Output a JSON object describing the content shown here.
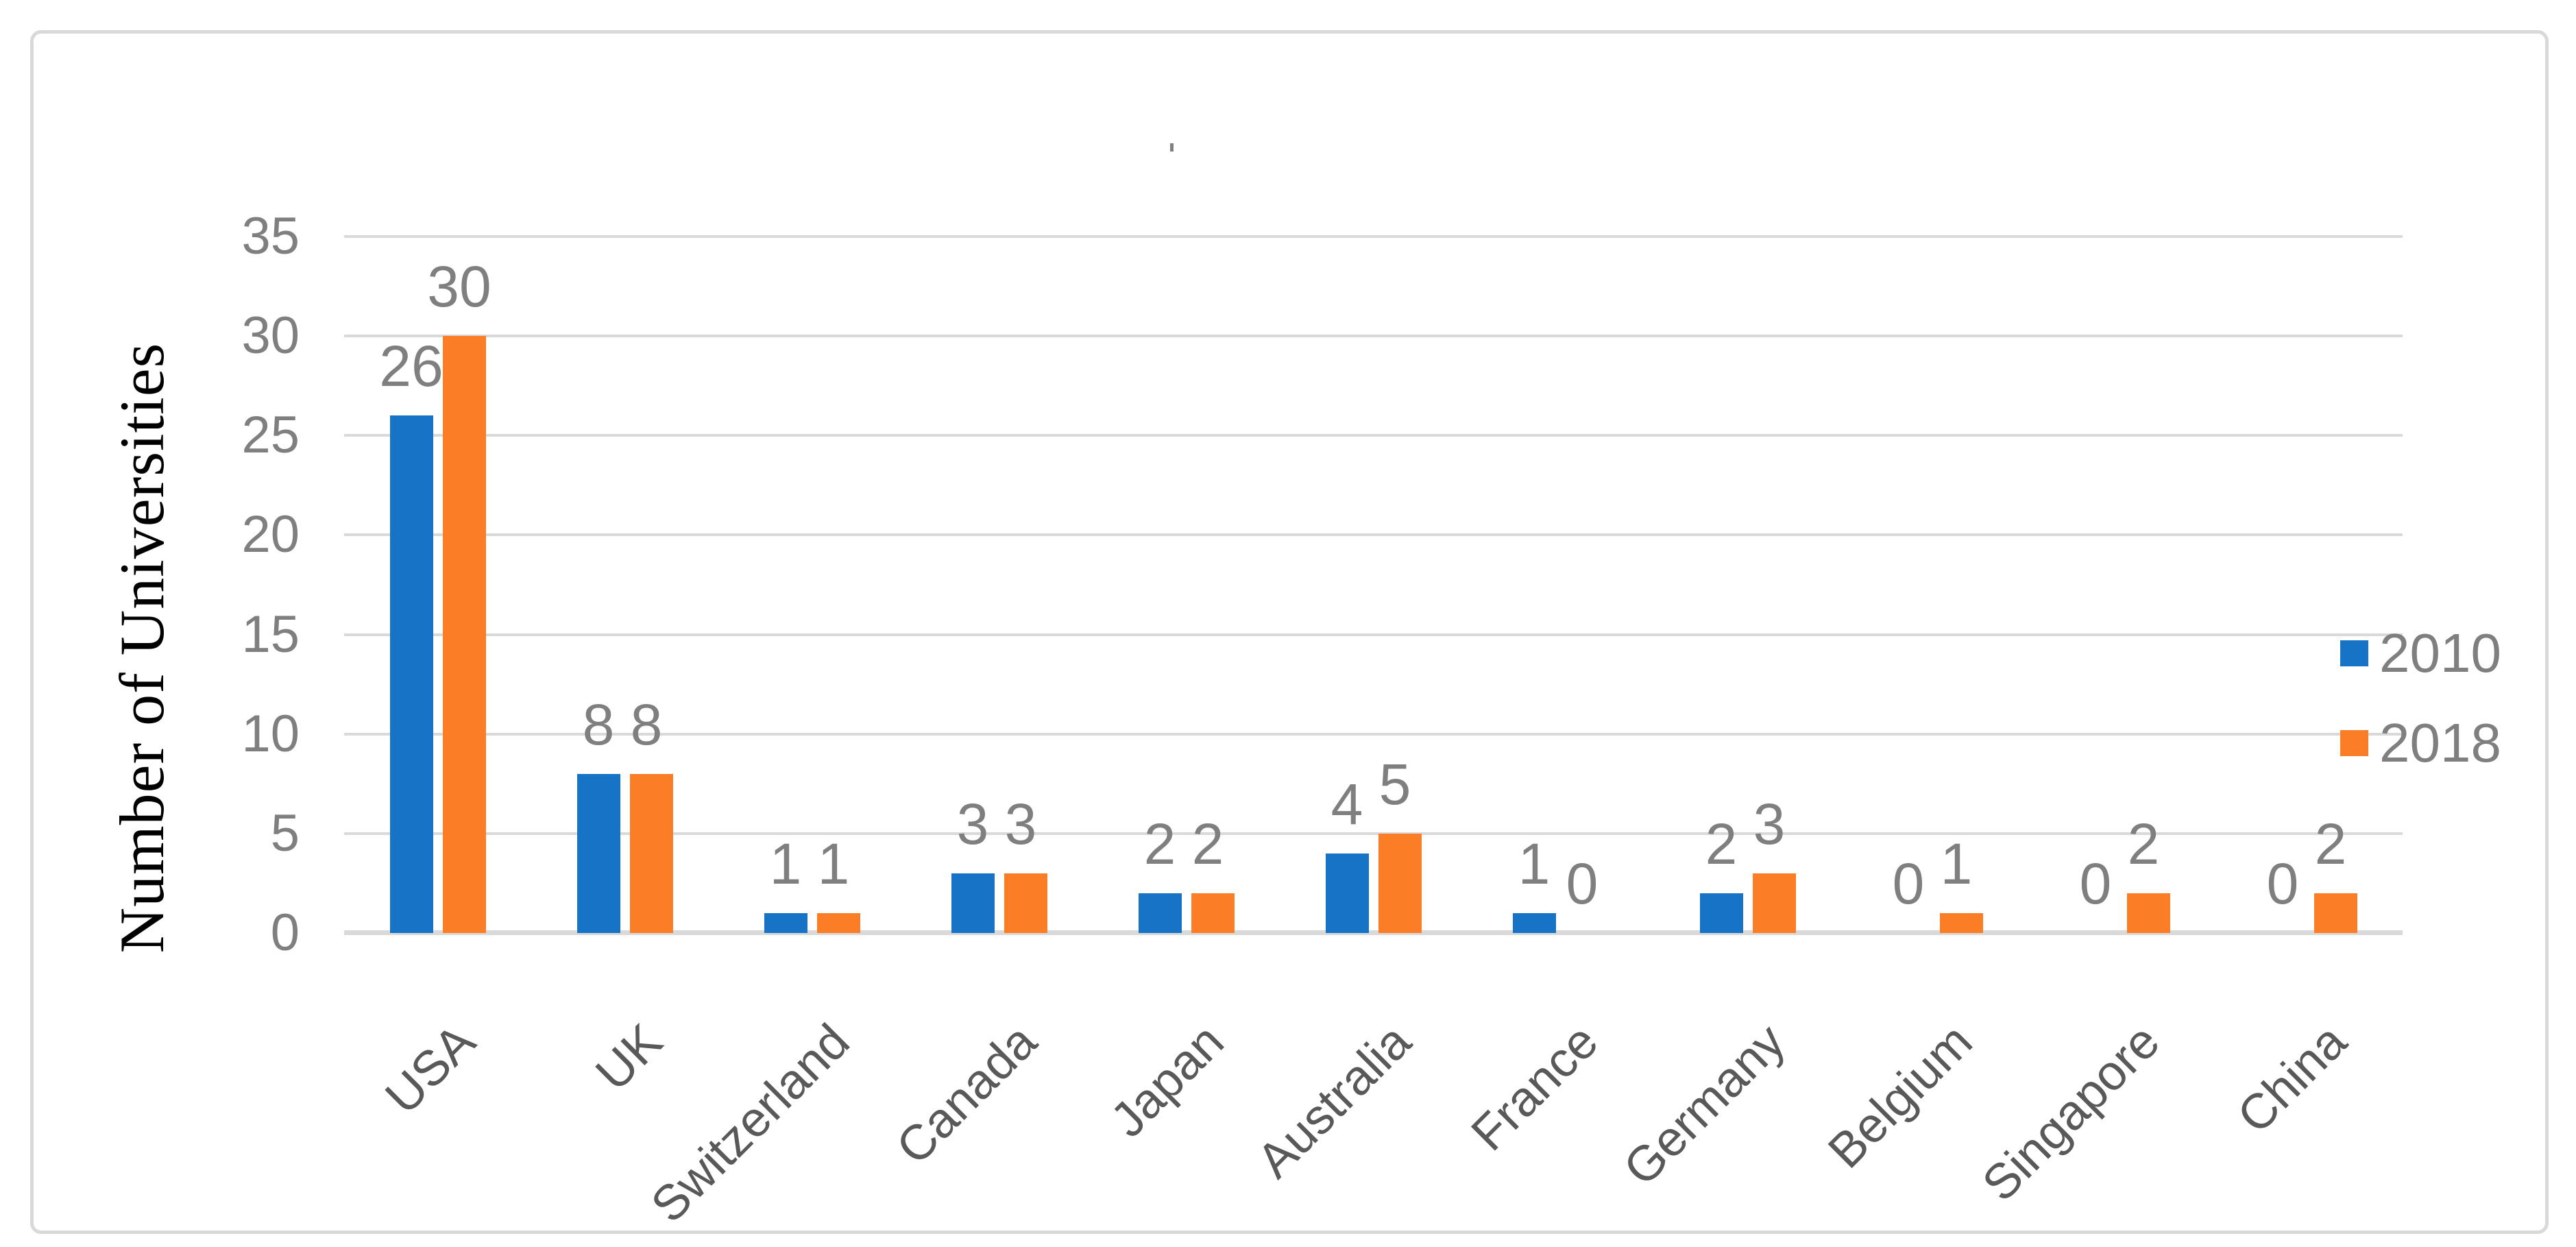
{
  "chart_data": {
    "type": "bar",
    "title": ".",
    "categories": [
      "USA",
      "UK",
      "Switzerland",
      "Canada",
      "Japan",
      "Australia",
      "France",
      "Germany",
      "Belgium",
      "Singapore",
      "China"
    ],
    "series": [
      {
        "name": "2010",
        "color": "#1673C6",
        "values": [
          26,
          8,
          1,
          3,
          2,
          4,
          1,
          2,
          0,
          0,
          0
        ]
      },
      {
        "name": "2018",
        "color": "#FB7D26",
        "values": [
          30,
          8,
          1,
          3,
          2,
          5,
          0,
          3,
          1,
          2,
          2
        ]
      }
    ],
    "ylabel": "Number of Universities",
    "xlabel": "",
    "ylim": [
      0,
      35
    ],
    "yticks": [
      35,
      30,
      25,
      20,
      15,
      10,
      5,
      0
    ],
    "grid": true,
    "data_labels": true,
    "legend_position": "right-middle",
    "colors": {
      "gridline": "#D9D9D9",
      "axis_line": "#D9D9D9",
      "frame_border": "#D9D9D9",
      "tick_label": "#7F7F7F",
      "data_label": "#7F7F7F",
      "category_label": "#595959",
      "legend_label": "#7F7F7F",
      "axis_title": "#000000"
    }
  }
}
